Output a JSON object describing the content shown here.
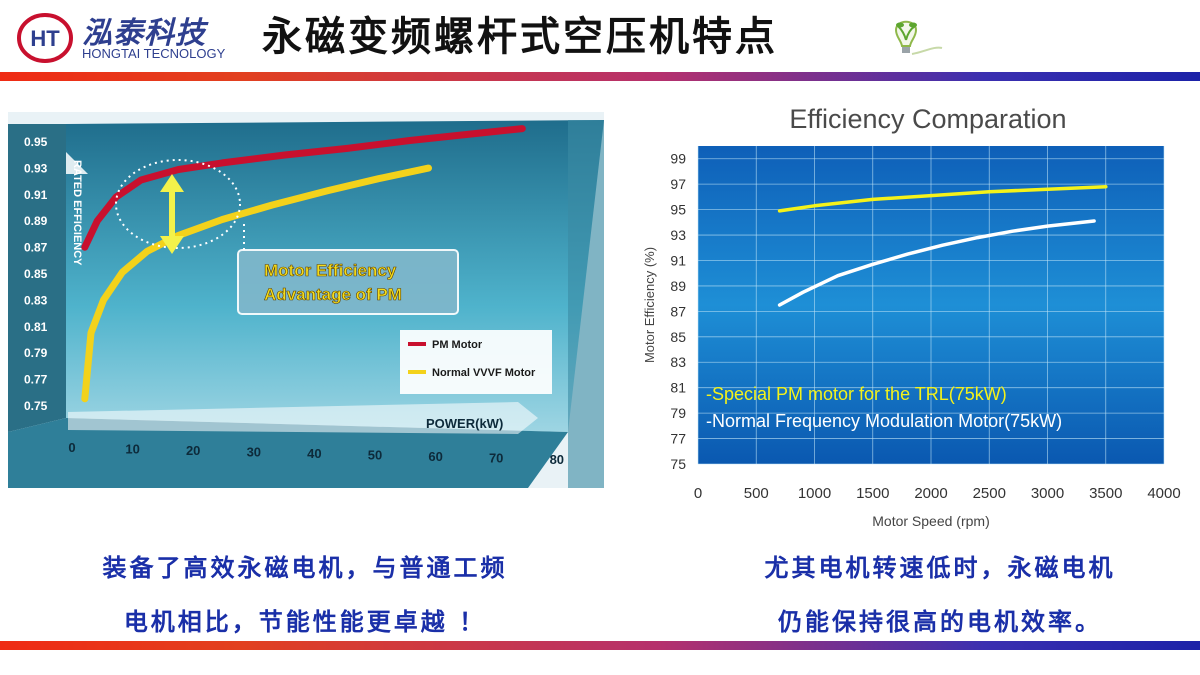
{
  "header": {
    "logo_cn": "泓泰科技",
    "logo_en": "HONGTAI TECNOLOGY",
    "logo_mark": "HT",
    "title": "永磁变频螺杆式空压机特点",
    "bulb_icon": "lightbulb-icon",
    "stripe_colors": [
      "#ef2b14",
      "#b5306d",
      "#1c22a8"
    ]
  },
  "chart_data": [
    {
      "type": "line",
      "ylabel": "RATED EFFICIENCY",
      "xlabel": "POWER(kW)",
      "x_ticks": [
        0,
        10,
        20,
        30,
        40,
        50,
        60,
        70,
        80
      ],
      "y_ticks": [
        "0.95",
        "0.93",
        "0.91",
        "0.89",
        "0.87",
        "0.85",
        "0.83",
        "0.81",
        "0.79",
        "0.77",
        "0.75"
      ],
      "xlim": [
        0,
        80
      ],
      "ylim": [
        0.74,
        0.96
      ],
      "annotation": [
        "Motor Efficiency",
        "Advantage of PM"
      ],
      "legend_position": "right",
      "series": [
        {
          "name": "PM Motor",
          "color": "#c8102e",
          "x": [
            3,
            5,
            8,
            12,
            18,
            25,
            35,
            45,
            55,
            65,
            73
          ],
          "y": [
            0.865,
            0.885,
            0.903,
            0.916,
            0.924,
            0.929,
            0.935,
            0.94,
            0.946,
            0.951,
            0.955
          ]
        },
        {
          "name": "Normal VVVF Motor",
          "color": "#f3d21b",
          "x": [
            3,
            4,
            6,
            9,
            13,
            18,
            25,
            33,
            42,
            50,
            58
          ],
          "y": [
            0.75,
            0.8,
            0.825,
            0.846,
            0.862,
            0.874,
            0.886,
            0.897,
            0.908,
            0.917,
            0.925
          ]
        }
      ],
      "colors": {
        "background": "#4fb3cc",
        "floor": "#2f7f99"
      }
    },
    {
      "type": "line",
      "title": "Efficiency Comparation",
      "xlabel": "Motor Speed  (rpm)",
      "ylabel": "Motor Efficiency  (%)",
      "x_ticks": [
        0,
        500,
        1000,
        1500,
        2000,
        2500,
        3000,
        3500,
        4000
      ],
      "y_ticks": [
        75,
        77,
        79,
        81,
        83,
        85,
        87,
        89,
        91,
        93,
        95,
        97,
        99
      ],
      "xlim": [
        0,
        4000
      ],
      "ylim": [
        75,
        100
      ],
      "grid": true,
      "legend": [
        "-Special PM motor for the TRL(75kW)",
        "-Normal Frequency Modulation Motor(75kW)"
      ],
      "legend_position": "bottom-left",
      "series": [
        {
          "color": "#f4f21a",
          "x": [
            700,
            1000,
            1500,
            2000,
            2500,
            3000,
            3500
          ],
          "y": [
            94.9,
            95.3,
            95.8,
            96.1,
            96.4,
            96.6,
            96.8
          ]
        },
        {
          "color": "#ffffff",
          "x": [
            700,
            900,
            1200,
            1500,
            1800,
            2100,
            2400,
            2700,
            3000,
            3400
          ],
          "y": [
            87.5,
            88.5,
            89.8,
            90.7,
            91.5,
            92.2,
            92.8,
            93.3,
            93.7,
            94.1
          ]
        }
      ],
      "colors": {
        "background": "#1e8fd6",
        "grid": "#bfe4f7"
      }
    }
  ],
  "captions": {
    "left_line1": "装备了高效永磁电机，与普通工频",
    "left_line2": "电机相比，节能性能更卓越 ！",
    "right_line1": "尤其电机转速低时，永磁电机",
    "right_line2": "仍能保持很高的电机效率。"
  }
}
